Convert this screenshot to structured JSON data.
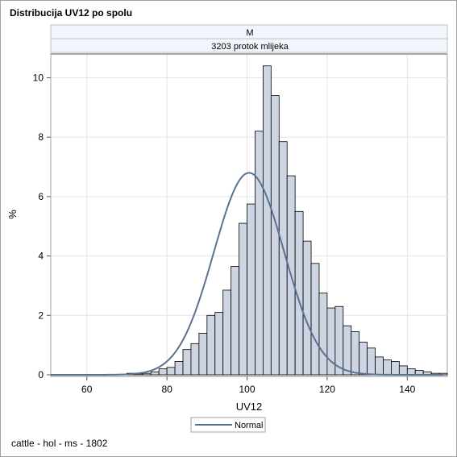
{
  "title": "Distribucija UV12 po spolu",
  "footnote": "cattle - hol - ms - 1802",
  "panel": {
    "header_top": "M",
    "header_bottom": "3203 protok mlijeka"
  },
  "chart_data": {
    "type": "histogram",
    "xlabel": "UV12",
    "ylabel": "%",
    "xlim": [
      51,
      150
    ],
    "ylim": [
      0,
      10.8
    ],
    "x_ticks": [
      60,
      80,
      100,
      120,
      140
    ],
    "y_ticks": [
      0,
      2,
      4,
      6,
      8,
      10
    ],
    "bin_width": 2,
    "bins": [
      {
        "x": 71,
        "value": 0.05
      },
      {
        "x": 73,
        "value": 0.03
      },
      {
        "x": 75,
        "value": 0.05
      },
      {
        "x": 77,
        "value": 0.1
      },
      {
        "x": 79,
        "value": 0.2
      },
      {
        "x": 81,
        "value": 0.25
      },
      {
        "x": 83,
        "value": 0.45
      },
      {
        "x": 85,
        "value": 0.85
      },
      {
        "x": 87,
        "value": 1.05
      },
      {
        "x": 89,
        "value": 1.4
      },
      {
        "x": 91,
        "value": 2.0
      },
      {
        "x": 93,
        "value": 2.1
      },
      {
        "x": 95,
        "value": 2.85
      },
      {
        "x": 97,
        "value": 3.65
      },
      {
        "x": 99,
        "value": 5.1
      },
      {
        "x": 101,
        "value": 5.75
      },
      {
        "x": 103,
        "value": 8.2
      },
      {
        "x": 105,
        "value": 10.4
      },
      {
        "x": 107,
        "value": 9.4
      },
      {
        "x": 109,
        "value": 7.85
      },
      {
        "x": 111,
        "value": 6.7
      },
      {
        "x": 113,
        "value": 5.5
      },
      {
        "x": 115,
        "value": 4.5
      },
      {
        "x": 117,
        "value": 3.75
      },
      {
        "x": 119,
        "value": 2.75
      },
      {
        "x": 121,
        "value": 2.25
      },
      {
        "x": 123,
        "value": 2.3
      },
      {
        "x": 125,
        "value": 1.65
      },
      {
        "x": 127,
        "value": 1.45
      },
      {
        "x": 129,
        "value": 1.1
      },
      {
        "x": 131,
        "value": 0.9
      },
      {
        "x": 133,
        "value": 0.6
      },
      {
        "x": 135,
        "value": 0.5
      },
      {
        "x": 137,
        "value": 0.45
      },
      {
        "x": 139,
        "value": 0.3
      },
      {
        "x": 141,
        "value": 0.2
      },
      {
        "x": 143,
        "value": 0.15
      },
      {
        "x": 145,
        "value": 0.1
      },
      {
        "x": 147,
        "value": 0.05
      },
      {
        "x": 149,
        "value": 0.05
      }
    ],
    "normal_curve": {
      "name": "Normal",
      "mean": 100.5,
      "sd": 8.8,
      "peak": 6.8
    },
    "legend": [
      "Normal"
    ],
    "legend_position": "bottom",
    "grid": true,
    "colors": {
      "bar_fill": "#cdd5e3",
      "bar_stroke": "#000000",
      "curve": "#5a7191",
      "grid": "#e4e4e4",
      "header_fill": "#f2f5fb"
    }
  }
}
